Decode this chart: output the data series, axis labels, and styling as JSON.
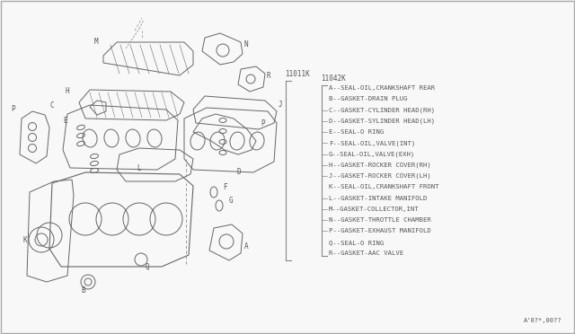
{
  "bg_color": "#f8f8f8",
  "border_color": "#333333",
  "part_number_left": "11011K",
  "part_number_right": "11042K",
  "legend_items": [
    "A--SEAL-□IL,CRANKSHAFT REAR",
    "B--GASKET-DRAIN PLUG",
    "C--GASKET-CYLINDER HEAD(RH)",
    "D--GASKET-SYLINDER HEAD(LH)",
    "E--SEAL-□ RING",
    "F--SEAL-□IL,VALVE(INT)",
    "G--SEAL-□IL,VALVE(EXH)",
    "H--GASKET-ROCKER COVER(RH)",
    "J--GASKET-ROCKER COVER(LH)",
    "K--SEAL-□IL,CRANKSHAFT FRONT",
    "L--GASKET-INTAKE MANIFOLD",
    "M--GASKET-COLLECTOR,INT",
    "N--GASKET-THROTTLE CHAMBER",
    "P--GASKET-EXHAUST MANIFOLD",
    "Q--SEAL-□ RING",
    "R--GASKET-AAC VALVE"
  ],
  "legend_items_plain": [
    "A--SEAL-OIL,CRANKSHAFT REAR",
    "B--GASKET-DRAIN PLUG",
    "C--GASKET-CYLINDER HEAD(RH)",
    "D--GASKET-SYLINDER HEAD(LH)",
    "E--SEAL-O RING",
    "F--SEAL-OIL,VALVE(INT)",
    "G--SEAL-OIL,VALVE(EXH)",
    "H--GASKET-ROCKER COVER(RH)",
    "J--GASKET-ROCKER COVER(LH)",
    "K--SEAL-OIL,CRANKSHAFT FRONT",
    "L--GASKET-INTAKE MANIFOLD",
    "M--GASKET-COLLECTOR,INT",
    "N--GASKET-THROTTLE CHAMBER",
    "P--GASKET-EXHAUST MANIFOLD",
    "Q--SEAL-O RING",
    "R--GASKET-AAC VALVE"
  ],
  "footer_text": "A'0?*,00??",
  "text_color": "#555555",
  "line_color": "#888888",
  "diagram_color": "#666666",
  "diagram_lw": 0.7
}
